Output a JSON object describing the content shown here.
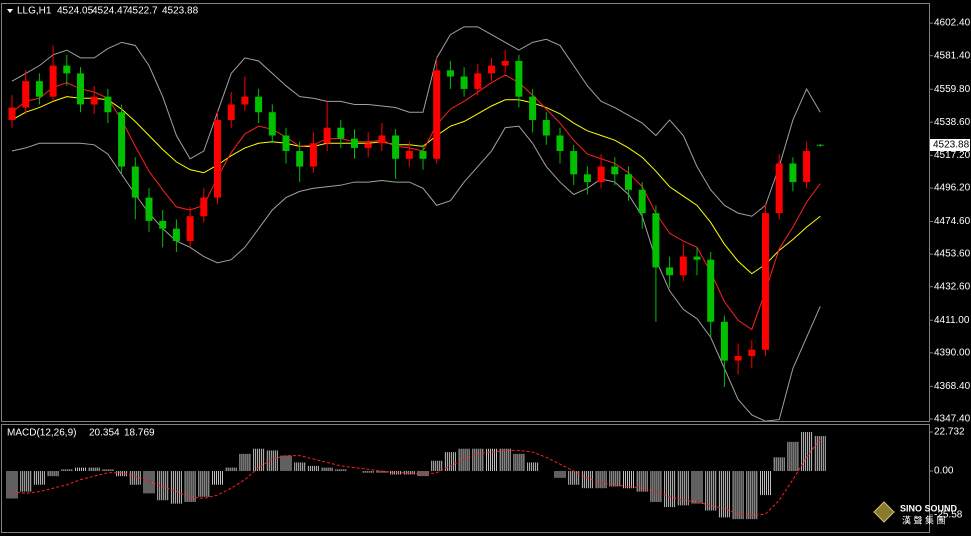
{
  "chart_data": [
    {
      "type": "candlestick",
      "title": "LLG,H1",
      "open": [
        4540,
        4548,
        4565,
        4555,
        4575,
        4570,
        4550,
        4555,
        4545,
        4510,
        4490,
        4475,
        4470,
        4462,
        4478,
        4490,
        4540,
        4550,
        4555,
        4545,
        4530,
        4520,
        4510,
        4525,
        4535,
        4528,
        4522,
        4525,
        4530,
        4515,
        4520,
        4515,
        4572,
        4568,
        4560,
        4570,
        4575,
        4578,
        4555,
        4540,
        4530,
        4520,
        4505,
        4500,
        4510,
        4505,
        4495,
        4480,
        4445,
        4440,
        4452,
        4450,
        4410,
        4385,
        4388,
        4392,
        4480,
        4512,
        4500,
        4524.05
      ],
      "high": [
        4556,
        4572,
        4570,
        4588,
        4582,
        4574,
        4562,
        4560,
        4550,
        4516,
        4496,
        4482,
        4476,
        4484,
        4496,
        4546,
        4558,
        4568,
        4560,
        4550,
        4535,
        4526,
        4532,
        4552,
        4540,
        4534,
        4532,
        4538,
        4534,
        4526,
        4524,
        4580,
        4578,
        4574,
        4576,
        4580,
        4585,
        4582,
        4560,
        4545,
        4535,
        4524,
        4510,
        4518,
        4516,
        4510,
        4500,
        4485,
        4452,
        4460,
        4458,
        4455,
        4414,
        4396,
        4398,
        4486,
        4518,
        4516,
        4526,
        4524.47
      ],
      "low": [
        4535,
        4544,
        4550,
        4552,
        4562,
        4545,
        4544,
        4538,
        4505,
        4476,
        4468,
        4458,
        4455,
        4458,
        4474,
        4486,
        4535,
        4546,
        4538,
        4525,
        4512,
        4500,
        4506,
        4520,
        4522,
        4515,
        4516,
        4520,
        4502,
        4510,
        4508,
        4512,
        4560,
        4555,
        4556,
        4565,
        4570,
        4548,
        4532,
        4524,
        4512,
        4498,
        4492,
        4496,
        4498,
        4488,
        4470,
        4410,
        4432,
        4436,
        4440,
        4400,
        4368,
        4376,
        4380,
        4388,
        4476,
        4494,
        4496,
        4522.7
      ],
      "close": [
        4548,
        4565,
        4555,
        4575,
        4570,
        4550,
        4555,
        4545,
        4510,
        4490,
        4475,
        4470,
        4462,
        4478,
        4490,
        4540,
        4550,
        4555,
        4545,
        4530,
        4520,
        4510,
        4525,
        4535,
        4528,
        4522,
        4525,
        4530,
        4515,
        4520,
        4515,
        4572,
        4568,
        4560,
        4570,
        4575,
        4578,
        4555,
        4540,
        4530,
        4520,
        4505,
        4500,
        4510,
        4505,
        4495,
        4480,
        4445,
        4440,
        4452,
        4450,
        4410,
        4385,
        4388,
        4392,
        4480,
        4512,
        4500,
        4520,
        4523.88
      ],
      "up_color": "#ff0000",
      "down_color": "#00c000",
      "lines": [
        {
          "color": "#a0a0a0",
          "values": [
            4565,
            4570,
            4575,
            4582,
            4585,
            4580,
            4580,
            4586,
            4590,
            4588,
            4575,
            4555,
            4530,
            4515,
            4520,
            4545,
            4570,
            4580,
            4578,
            4570,
            4562,
            4555,
            4554,
            4552,
            4552,
            4550,
            4550,
            4549,
            4548,
            4545,
            4545,
            4580,
            4595,
            4600,
            4600,
            4595,
            4590,
            4585,
            4590,
            4592,
            4588,
            4575,
            4562,
            4552,
            4548,
            4543,
            4538,
            4530,
            4540,
            4530,
            4510,
            4495,
            4485,
            4480,
            4478,
            4485,
            4510,
            4540,
            4560,
            4545
          ]
        },
        {
          "color": "#a0a0a0",
          "values": [
            4520,
            4522,
            4525,
            4525,
            4525,
            4525,
            4524,
            4518,
            4505,
            4492,
            4480,
            4470,
            4462,
            4458,
            4452,
            4448,
            4450,
            4458,
            4470,
            4482,
            4490,
            4494,
            4496,
            4497,
            4498,
            4500,
            4500,
            4501,
            4500,
            4500,
            4496,
            4485,
            4488,
            4500,
            4510,
            4520,
            4535,
            4536,
            4525,
            4510,
            4500,
            4492,
            4496,
            4502,
            4500,
            4492,
            4478,
            4450,
            4430,
            4418,
            4412,
            4400,
            4380,
            4360,
            4350,
            4346,
            4347,
            4380,
            4400,
            4420
          ]
        },
        {
          "color": "#ffff00",
          "values": [
            4540,
            4545,
            4548,
            4552,
            4555,
            4554,
            4554,
            4553,
            4547,
            4539,
            4530,
            4521,
            4513,
            4508,
            4506,
            4511,
            4517,
            4522,
            4525,
            4526,
            4525,
            4523,
            4523,
            4525,
            4525,
            4525,
            4525,
            4526,
            4524,
            4524,
            4523,
            4530,
            4536,
            4539,
            4544,
            4549,
            4553,
            4553,
            4551,
            4548,
            4544,
            4538,
            4533,
            4530,
            4527,
            4522,
            4516,
            4507,
            4497,
            4491,
            4485,
            4474,
            4460,
            4449,
            4441,
            4447,
            4456,
            4463,
            4471,
            4478
          ]
        },
        {
          "color": "#ff2020",
          "values": [
            4545,
            4552,
            4554,
            4561,
            4564,
            4560,
            4558,
            4554,
            4540,
            4523,
            4507,
            4495,
            4484,
            4482,
            4485,
            4503,
            4519,
            4531,
            4536,
            4534,
            4529,
            4523,
            4524,
            4528,
            4528,
            4526,
            4526,
            4527,
            4523,
            4522,
            4520,
            4537,
            4547,
            4552,
            4558,
            4564,
            4569,
            4564,
            4556,
            4547,
            4538,
            4527,
            4518,
            4515,
            4512,
            4506,
            4497,
            4480,
            4467,
            4462,
            4458,
            4442,
            4423,
            4411,
            4405,
            4430,
            4457,
            4471,
            4487,
            4499
          ]
        }
      ],
      "ylim": [
        4346.1,
        4614.7
      ],
      "yticks": [
        {
          "value": 4602.4,
          "label": "4602.40"
        },
        {
          "value": 4581.4,
          "label": "4581.40"
        },
        {
          "value": 4559.8,
          "label": "4559.80"
        },
        {
          "value": 4538.6,
          "label": "4538.60"
        },
        {
          "value": 4517.2,
          "label": "4517.20"
        },
        {
          "value": 4496.2,
          "label": "4496.20"
        },
        {
          "value": 4474.6,
          "label": "4474.60"
        },
        {
          "value": 4453.6,
          "label": "4453.60"
        },
        {
          "value": 4432.6,
          "label": "4432.60"
        },
        {
          "value": 4411,
          "label": "4411.00"
        },
        {
          "value": 4390,
          "label": "4390.00"
        },
        {
          "value": 4368.4,
          "label": "4368.40"
        },
        {
          "value": 4347.4,
          "label": "4347.40"
        }
      ]
    },
    {
      "type": "macd",
      "title": "MACD(12,26,9)",
      "values": [
        -16,
        -12,
        -8,
        -3,
        1,
        2,
        2,
        1,
        -3,
        -8,
        -13,
        -17,
        -19,
        -18,
        -15,
        -8,
        2,
        10,
        13,
        12,
        9,
        5,
        3,
        2,
        1,
        0,
        -1,
        -1,
        -2,
        -2,
        -3,
        6,
        11,
        13,
        13,
        13,
        13,
        10,
        5,
        0,
        -4,
        -8,
        -10,
        -10,
        -9,
        -10,
        -12,
        -18,
        -21,
        -20,
        -19,
        -23,
        -27,
        -28,
        -28,
        -14,
        8,
        17,
        22.732,
        20.354
      ],
      "signal": [
        -12,
        -13,
        -12,
        -10,
        -8,
        -5,
        -3,
        -1,
        -1,
        -3,
        -6,
        -9,
        -12,
        -15,
        -16,
        -14,
        -10,
        -5,
        2,
        7,
        9,
        9,
        7,
        5,
        3,
        2,
        1,
        0,
        -1,
        -1,
        -2,
        -1,
        3,
        7,
        10,
        11,
        12,
        12,
        11,
        8,
        4,
        0,
        -4,
        -7,
        -8,
        -9,
        -10,
        -12,
        -15,
        -17,
        -18,
        -20,
        -22,
        -25,
        -26,
        -25,
        -17,
        -5,
        8,
        18.769
      ],
      "color": "#c0c0c0",
      "signal_color": "#ff2020",
      "ylim": [
        -35.5,
        26.8
      ],
      "yticks": [
        22.732,
        {
          "value": 0,
          "label": "0.00"
        },
        -25.58
      ]
    }
  ],
  "watermark": {
    "text": "SINO SOUND",
    "subtext": "漢 聲 集 團"
  }
}
